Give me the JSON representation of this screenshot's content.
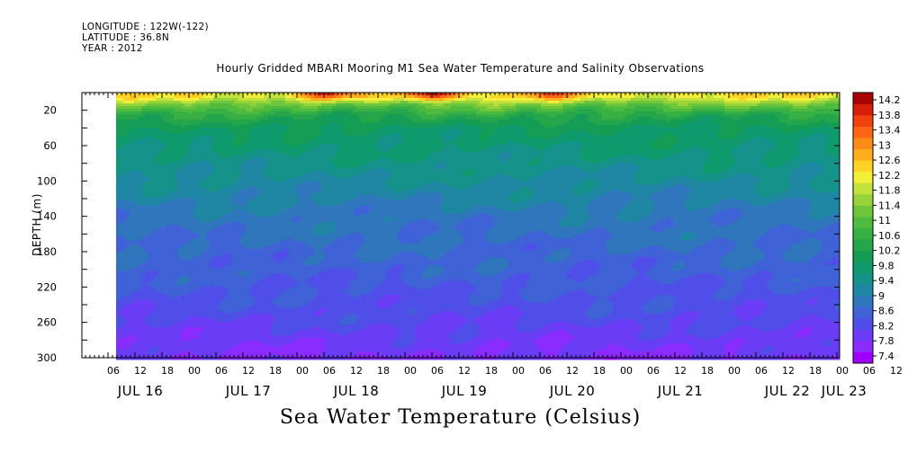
{
  "header": {
    "longitude": "LONGITUDE : 122W(-122)",
    "latitude": "LATITUDE : 36.8N",
    "year": "YEAR : 2012",
    "title": "Hourly Gridded MBARI Mooring M1 Sea Water Temperature and Salinity Observations"
  },
  "colors": {
    "scale": [
      "#a000ff",
      "#8a2cff",
      "#6a3cf6",
      "#4f4ee8",
      "#3f62d6",
      "#2f76bd",
      "#1f86a3",
      "#15928a",
      "#0f9a6e",
      "#159d55",
      "#26a64a",
      "#38b044",
      "#4ebb3e",
      "#6fc63a",
      "#98d438",
      "#c3e33c",
      "#f4f03a",
      "#ffd326",
      "#ffae1d",
      "#ff8a17",
      "#ff6614",
      "#f0420e",
      "#d61e08",
      "#a80404"
    ]
  },
  "chart_data": {
    "type": "heatmap",
    "title": "Hourly Gridded MBARI Mooring M1 Sea Water Temperature and Salinity Observations",
    "variable": "Sea Water Temperature (Celsius)",
    "xlabel": "",
    "ylabel": "DEPTH (m)",
    "ylim": [
      300,
      0
    ],
    "y_ticks": [
      20,
      60,
      100,
      140,
      180,
      220,
      260,
      300
    ],
    "x_hour_ticks": [
      "06",
      "12",
      "18",
      "00",
      "06",
      "12",
      "18",
      "00",
      "06",
      "12",
      "18",
      "00",
      "06",
      "12",
      "18",
      "00",
      "06",
      "12",
      "18",
      "00",
      "06",
      "12",
      "18",
      "00",
      "06",
      "12",
      "18",
      "00",
      "06",
      "12",
      "18",
      "00"
    ],
    "x_day_labels": [
      "JUL 16",
      "JUL 17",
      "JUL 18",
      "JUL 19",
      "JUL 20",
      "JUL 21",
      "JUL 22",
      "JUL 23"
    ],
    "data_start": "JUL 16 10:00",
    "colorbar_labels": [
      "14.2",
      "13.8",
      "13.4",
      "13",
      "12.6",
      "12.2",
      "11.8",
      "11.4",
      "11",
      "10.6",
      "10.2",
      "9.8",
      "9.4",
      "9",
      "8.6",
      "8.2",
      "7.8",
      "7.4"
    ],
    "depth_profile": [
      {
        "depth": 5,
        "temp": 12.2
      },
      {
        "depth": 15,
        "temp": 11.2
      },
      {
        "depth": 25,
        "temp": 10.5
      },
      {
        "depth": 40,
        "temp": 10.0
      },
      {
        "depth": 60,
        "temp": 9.8
      },
      {
        "depth": 80,
        "temp": 9.6
      },
      {
        "depth": 100,
        "temp": 9.4
      },
      {
        "depth": 120,
        "temp": 9.2
      },
      {
        "depth": 140,
        "temp": 9.0
      },
      {
        "depth": 160,
        "temp": 8.9
      },
      {
        "depth": 180,
        "temp": 8.8
      },
      {
        "depth": 200,
        "temp": 8.7
      },
      {
        "depth": 220,
        "temp": 8.55
      },
      {
        "depth": 240,
        "temp": 8.45
      },
      {
        "depth": 260,
        "temp": 8.3
      },
      {
        "depth": 280,
        "temp": 8.1
      },
      {
        "depth": 300,
        "temp": 7.95
      }
    ],
    "warm_events": [
      {
        "day": "JUL 18",
        "hour": 6,
        "peak_temp": 14.2
      },
      {
        "day": "JUL 19",
        "hour": 6,
        "peak_temp": 14.2
      },
      {
        "day": "JUL 20",
        "hour": 8,
        "peak_temp": 13.8
      }
    ]
  },
  "labels": {
    "xtitle": "Sea Water Temperature (Celsius)"
  }
}
